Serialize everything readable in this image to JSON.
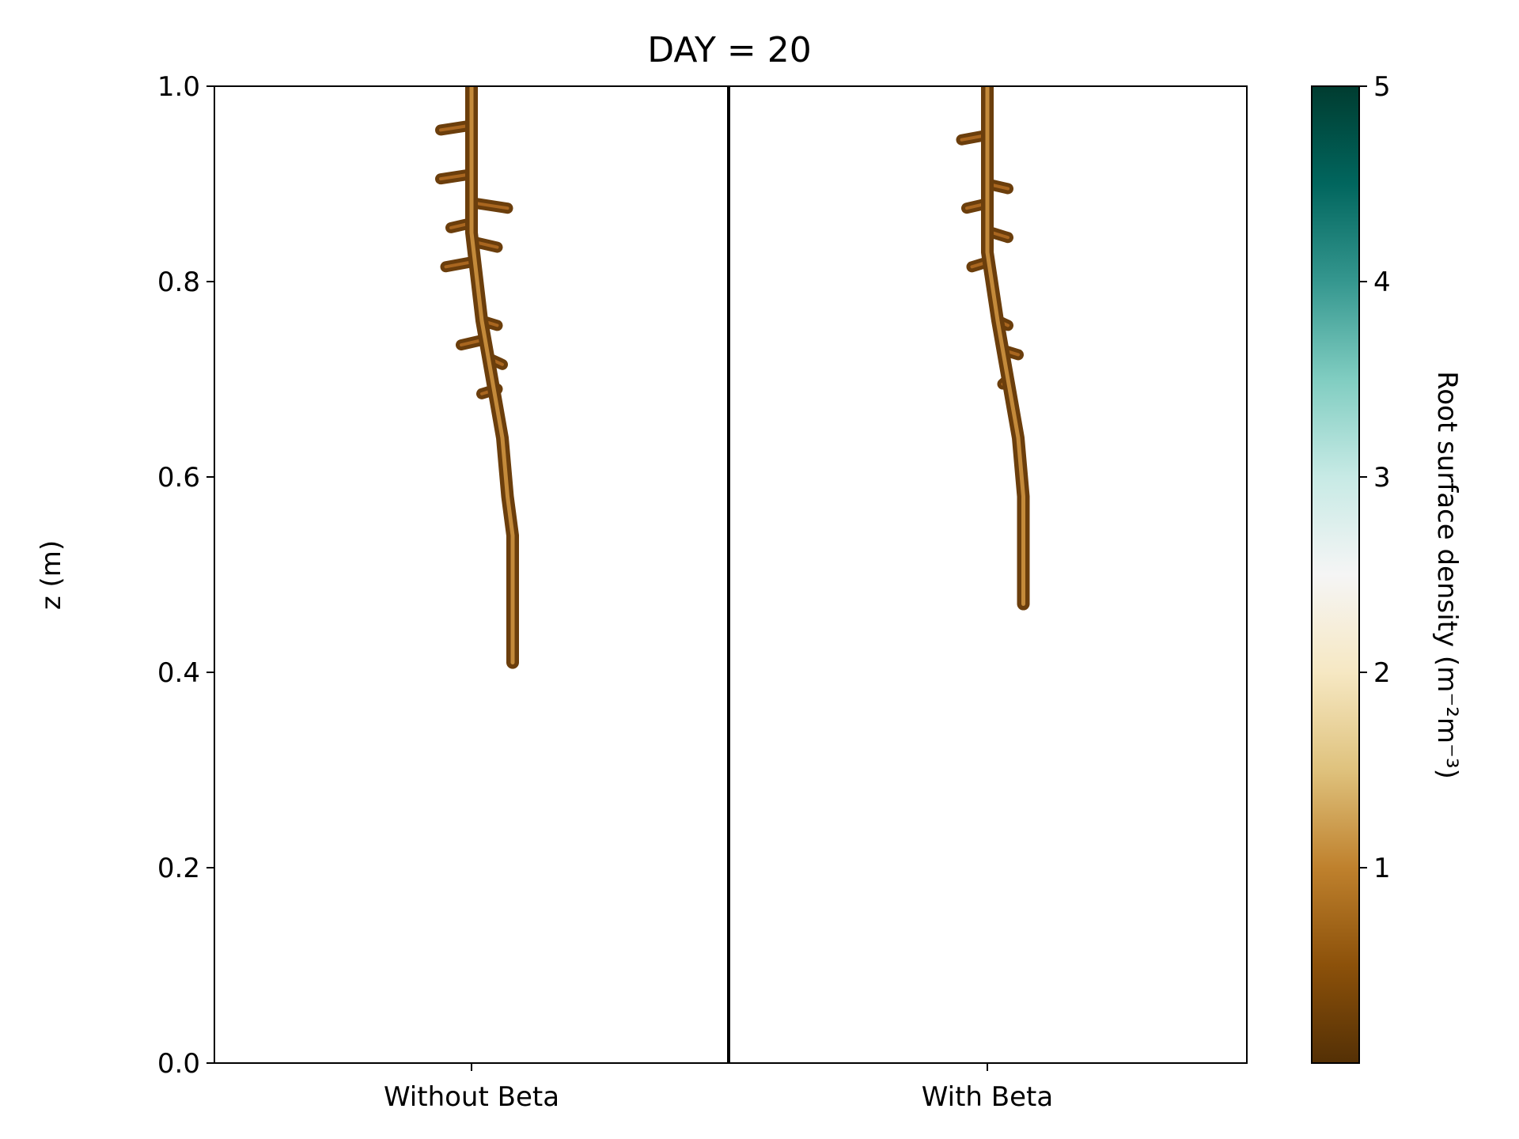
{
  "chart_data": {
    "type": "heatmap",
    "title": "DAY = 20",
    "xlabel": "",
    "ylabel": "z (m)",
    "categories": [
      "Without Beta",
      "With Beta"
    ],
    "ylim": [
      0.0,
      1.0
    ],
    "yticks": [
      "0.0",
      "0.2",
      "0.4",
      "0.6",
      "0.8",
      "1.0"
    ],
    "grid": false,
    "colorbar": {
      "label": "Root surface density (m⁻²m⁻³)",
      "range": [
        0,
        5
      ],
      "ticks": [
        "1",
        "2",
        "3",
        "4",
        "5"
      ],
      "colormap": "BrBG"
    },
    "panels": [
      {
        "name": "Without Beta",
        "root_depth_min_z": 0.41,
        "taproot": [
          [
            0.0,
            1.0
          ],
          [
            0.0,
            0.85
          ],
          [
            0.02,
            0.76
          ],
          [
            0.04,
            0.7
          ],
          [
            0.06,
            0.64
          ],
          [
            0.07,
            0.58
          ],
          [
            0.08,
            0.54
          ],
          [
            0.08,
            0.41
          ]
        ],
        "laterals": [
          {
            "z": 0.96,
            "x0": 0.0,
            "x1": -0.06
          },
          {
            "z": 0.91,
            "x0": 0.0,
            "x1": -0.06
          },
          {
            "z": 0.88,
            "x0": 0.01,
            "x1": 0.07
          },
          {
            "z": 0.86,
            "x0": 0.0,
            "x1": -0.04
          },
          {
            "z": 0.84,
            "x0": 0.01,
            "x1": 0.05
          },
          {
            "z": 0.82,
            "x0": 0.0,
            "x1": -0.05
          },
          {
            "z": 0.76,
            "x0": 0.02,
            "x1": 0.05
          },
          {
            "z": 0.74,
            "x0": 0.02,
            "x1": -0.02
          },
          {
            "z": 0.72,
            "x0": 0.04,
            "x1": 0.06
          },
          {
            "z": 0.69,
            "x0": 0.05,
            "x1": 0.02
          }
        ]
      },
      {
        "name": "With Beta",
        "root_depth_min_z": 0.47,
        "taproot": [
          [
            0.0,
            1.0
          ],
          [
            0.0,
            0.83
          ],
          [
            0.02,
            0.76
          ],
          [
            0.04,
            0.7
          ],
          [
            0.06,
            0.64
          ],
          [
            0.07,
            0.58
          ],
          [
            0.07,
            0.47
          ]
        ],
        "laterals": [
          {
            "z": 0.95,
            "x0": 0.0,
            "x1": -0.05
          },
          {
            "z": 0.9,
            "x0": 0.0,
            "x1": 0.04
          },
          {
            "z": 0.88,
            "x0": 0.0,
            "x1": -0.04
          },
          {
            "z": 0.85,
            "x0": 0.01,
            "x1": 0.04
          },
          {
            "z": 0.82,
            "x0": 0.0,
            "x1": -0.03
          },
          {
            "z": 0.76,
            "x0": 0.02,
            "x1": 0.04
          },
          {
            "z": 0.73,
            "x0": 0.03,
            "x1": 0.06
          },
          {
            "z": 0.7,
            "x0": 0.04,
            "x1": 0.03
          }
        ]
      }
    ]
  }
}
